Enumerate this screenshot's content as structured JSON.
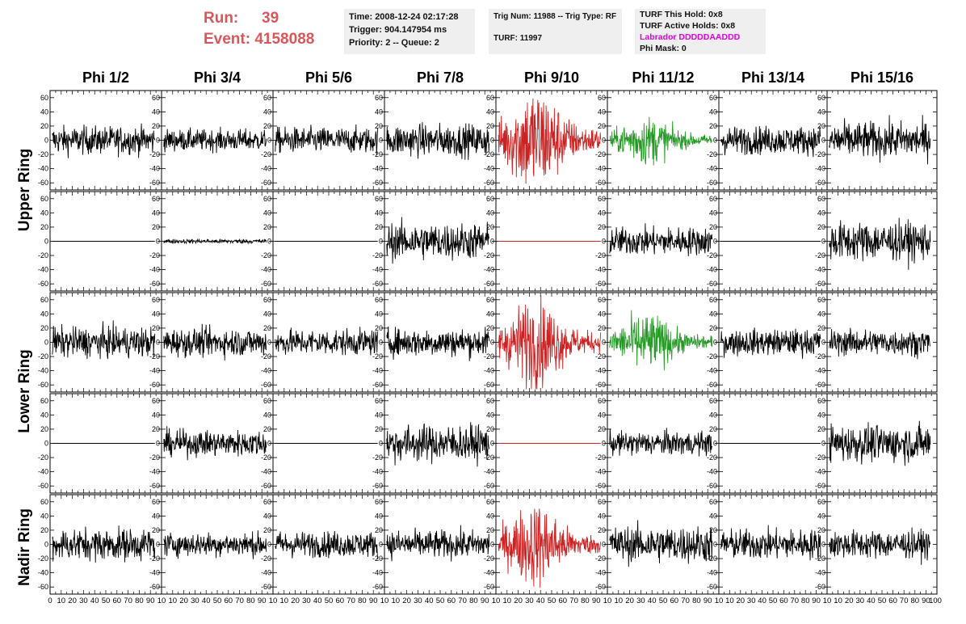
{
  "header": {
    "run_label": "Run:",
    "run_value": "39",
    "event_label": "Event:",
    "event_value": "4158088"
  },
  "info_time": {
    "time": "Time: 2008-12-24 02:17:28",
    "trigger": "Trigger: 904.147954 ms",
    "priority": "Priority: 2 -- Queue: 2"
  },
  "info_trig": {
    "trig": "Trig Num: 11988 -- Trig Type: RF",
    "turf": "TURF: 11997"
  },
  "info_turf": {
    "this_hold": "TURF This Hold: 0x8",
    "active_holds": "TURF Active Holds: 0x8",
    "labrador": "Labrador DDDDDAADDD",
    "phi_mask": "Phi Mask: 0"
  },
  "colors": {
    "trace_default": "#000000",
    "trace_triggered": "#cc2222",
    "trace_secondary": "#229922",
    "labrador": "#e000e0",
    "run_event": "#d9575a"
  },
  "chart_data": {
    "type": "line",
    "phi_columns": [
      "Phi 1/2",
      "Phi 3/4",
      "Phi 5/6",
      "Phi 7/8",
      "Phi 9/10",
      "Phi 11/12",
      "Phi 13/14",
      "Phi 15/16"
    ],
    "rings": [
      "Upper Ring",
      "Lower Ring",
      "Nadir Ring"
    ],
    "xlim": [
      0,
      100
    ],
    "ylim": [
      -70,
      70
    ],
    "x_ticks": [
      0,
      10,
      20,
      30,
      40,
      50,
      60,
      70,
      80,
      90,
      100
    ],
    "y_ticks": [
      -60,
      -40,
      -20,
      0,
      20,
      40,
      60
    ],
    "x_tick_labels_first": "0 10 20 30 40 50 60 70 80 90 10",
    "x_tick_labels_last": "10 20 30 40 50 60 70 80 90 100",
    "panel_rows": [
      {
        "ring": "Upper Ring",
        "cells": [
          {
            "amp": 13,
            "color": "black"
          },
          {
            "amp": 10,
            "color": "black"
          },
          {
            "amp": 12,
            "color": "black"
          },
          {
            "amp": 15,
            "color": "black"
          },
          {
            "amp": 32,
            "color": "red",
            "burst": true
          },
          {
            "amp": 14,
            "color": "green",
            "burst": true
          },
          {
            "amp": 13,
            "color": "black"
          },
          {
            "amp": 17,
            "color": "black"
          }
        ]
      },
      {
        "ring": "Upper Ring",
        "cells": [
          {
            "amp": 0,
            "color": "black"
          },
          {
            "amp": 2,
            "color": "black"
          },
          {
            "amp": 0,
            "color": "black"
          },
          {
            "amp": 17,
            "color": "black"
          },
          {
            "amp": 0,
            "color": "red"
          },
          {
            "amp": 13,
            "color": "black"
          },
          {
            "amp": 0,
            "color": "black"
          },
          {
            "amp": 18,
            "color": "black"
          }
        ]
      },
      {
        "ring": "Lower Ring",
        "cells": [
          {
            "amp": 14,
            "color": "black"
          },
          {
            "amp": 13,
            "color": "black"
          },
          {
            "amp": 12,
            "color": "black"
          },
          {
            "amp": 13,
            "color": "black"
          },
          {
            "amp": 26,
            "color": "red",
            "burst": true
          },
          {
            "amp": 17,
            "color": "green",
            "burst": true
          },
          {
            "amp": 12,
            "color": "black"
          },
          {
            "amp": 12,
            "color": "black"
          }
        ]
      },
      {
        "ring": "Lower Ring",
        "cells": [
          {
            "amp": 0,
            "color": "black"
          },
          {
            "amp": 12,
            "color": "black"
          },
          {
            "amp": 0,
            "color": "black"
          },
          {
            "amp": 17,
            "color": "black"
          },
          {
            "amp": 0,
            "color": "red"
          },
          {
            "amp": 11,
            "color": "black"
          },
          {
            "amp": 0,
            "color": "black"
          },
          {
            "amp": 17,
            "color": "black"
          }
        ]
      },
      {
        "ring": "Nadir Ring",
        "cells": [
          {
            "amp": 15,
            "color": "black"
          },
          {
            "amp": 11,
            "color": "black"
          },
          {
            "amp": 12,
            "color": "black"
          },
          {
            "amp": 13,
            "color": "black"
          },
          {
            "amp": 24,
            "color": "red",
            "burst": true
          },
          {
            "amp": 17,
            "color": "black"
          },
          {
            "amp": 14,
            "color": "black"
          },
          {
            "amp": 13,
            "color": "black"
          }
        ]
      }
    ]
  }
}
